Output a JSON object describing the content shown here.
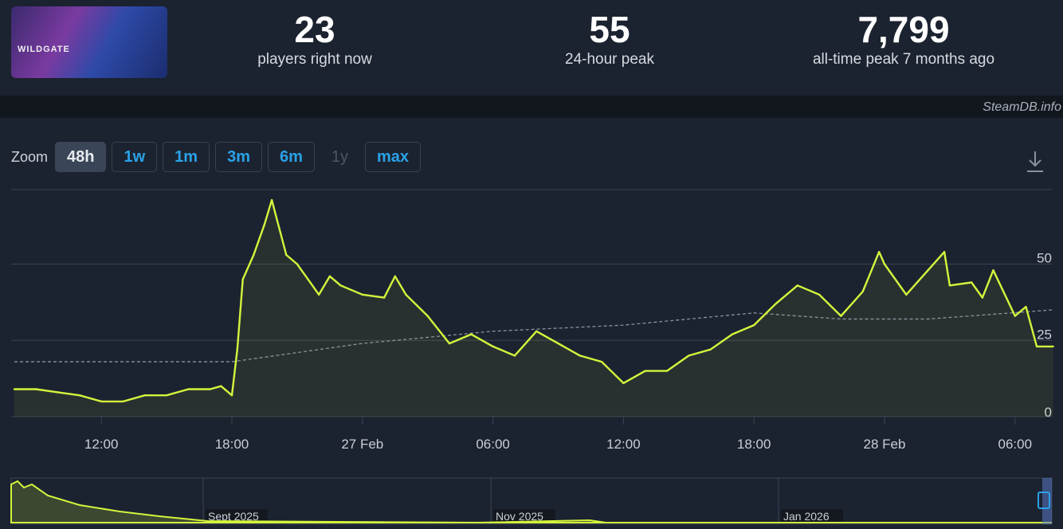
{
  "header": {
    "game_logo_text": "WILDGATE",
    "stats": [
      {
        "value": "23",
        "label": "players right now"
      },
      {
        "value": "55",
        "label": "24-hour peak"
      },
      {
        "value": "7,799",
        "label": "all-time peak 7 months ago"
      }
    ]
  },
  "watermark": "SteamDB.info",
  "zoom": {
    "label": "Zoom",
    "buttons": [
      {
        "label": "48h",
        "state": "active"
      },
      {
        "label": "1w",
        "state": "enabled"
      },
      {
        "label": "1m",
        "state": "enabled"
      },
      {
        "label": "3m",
        "state": "enabled"
      },
      {
        "label": "6m",
        "state": "enabled"
      },
      {
        "label": "1y",
        "state": "disabled"
      },
      {
        "label": "max",
        "state": "enabled"
      }
    ]
  },
  "colors": {
    "line": "#d4f53c",
    "average": "#8a929e",
    "grid": "#3a4352"
  },
  "chart_data": {
    "type": "line",
    "x_start": "2026-02-26T08:00",
    "x_end": "2026-02-28T07:45",
    "ylim": [
      0,
      75
    ],
    "yticks": [
      0,
      25,
      50
    ],
    "xticks": [
      {
        "at": "2026-02-26T12:00",
        "label": "12:00"
      },
      {
        "at": "2026-02-26T18:00",
        "label": "18:00"
      },
      {
        "at": "2026-02-27T00:00",
        "label": "27 Feb"
      },
      {
        "at": "2026-02-27T06:00",
        "label": "06:00"
      },
      {
        "at": "2026-02-27T12:00",
        "label": "12:00"
      },
      {
        "at": "2026-02-27T18:00",
        "label": "18:00"
      },
      {
        "at": "2026-02-28T00:00",
        "label": "28 Feb"
      },
      {
        "at": "2026-02-28T06:00",
        "label": "06:00"
      }
    ],
    "grid": true,
    "series": [
      {
        "style": "solid",
        "points": [
          [
            "2026-02-26T08:00",
            9
          ],
          [
            "2026-02-26T09:00",
            9
          ],
          [
            "2026-02-26T10:00",
            8
          ],
          [
            "2026-02-26T11:00",
            7
          ],
          [
            "2026-02-26T12:00",
            5
          ],
          [
            "2026-02-26T13:00",
            5
          ],
          [
            "2026-02-26T14:00",
            7
          ],
          [
            "2026-02-26T15:00",
            7
          ],
          [
            "2026-02-26T16:00",
            9
          ],
          [
            "2026-02-26T17:00",
            9
          ],
          [
            "2026-02-26T17:30",
            10
          ],
          [
            "2026-02-26T18:00",
            7
          ],
          [
            "2026-02-26T18:15",
            22
          ],
          [
            "2026-02-26T18:30",
            45
          ],
          [
            "2026-02-26T19:00",
            53
          ],
          [
            "2026-02-26T19:30",
            63
          ],
          [
            "2026-02-26T19:50",
            71
          ],
          [
            "2026-02-26T20:30",
            53
          ],
          [
            "2026-02-26T21:00",
            50
          ],
          [
            "2026-02-26T22:00",
            40
          ],
          [
            "2026-02-26T22:30",
            46
          ],
          [
            "2026-02-26T23:00",
            43
          ],
          [
            "2026-02-27T00:00",
            40
          ],
          [
            "2026-02-27T01:00",
            39
          ],
          [
            "2026-02-27T01:30",
            46
          ],
          [
            "2026-02-27T02:00",
            40
          ],
          [
            "2026-02-27T03:00",
            33
          ],
          [
            "2026-02-27T04:00",
            24
          ],
          [
            "2026-02-27T05:00",
            27
          ],
          [
            "2026-02-27T06:00",
            23
          ],
          [
            "2026-02-27T07:00",
            20
          ],
          [
            "2026-02-27T08:00",
            28
          ],
          [
            "2026-02-27T09:00",
            24
          ],
          [
            "2026-02-27T10:00",
            20
          ],
          [
            "2026-02-27T11:00",
            18
          ],
          [
            "2026-02-27T12:00",
            11
          ],
          [
            "2026-02-27T13:00",
            15
          ],
          [
            "2026-02-27T14:00",
            15
          ],
          [
            "2026-02-27T15:00",
            20
          ],
          [
            "2026-02-27T16:00",
            22
          ],
          [
            "2026-02-27T17:00",
            27
          ],
          [
            "2026-02-27T18:00",
            30
          ],
          [
            "2026-02-27T19:00",
            37
          ],
          [
            "2026-02-27T20:00",
            43
          ],
          [
            "2026-02-27T21:00",
            40
          ],
          [
            "2026-02-27T22:00",
            33
          ],
          [
            "2026-02-27T23:00",
            41
          ],
          [
            "2026-02-27T23:45",
            54
          ],
          [
            "2026-02-28T00:00",
            50
          ],
          [
            "2026-02-28T01:00",
            40
          ],
          [
            "2026-02-28T02:00",
            48
          ],
          [
            "2026-02-28T02:45",
            54
          ],
          [
            "2026-02-28T03:00",
            43
          ],
          [
            "2026-02-28T04:00",
            44
          ],
          [
            "2026-02-28T04:30",
            39
          ],
          [
            "2026-02-28T05:00",
            48
          ],
          [
            "2026-02-28T06:00",
            33
          ],
          [
            "2026-02-28T06:30",
            36
          ],
          [
            "2026-02-28T07:00",
            23
          ],
          [
            "2026-02-28T07:45",
            23
          ]
        ]
      },
      {
        "style": "dashed",
        "points": [
          [
            "2026-02-26T08:00",
            18
          ],
          [
            "2026-02-26T18:00",
            18
          ],
          [
            "2026-02-27T00:00",
            24
          ],
          [
            "2026-02-27T06:00",
            28
          ],
          [
            "2026-02-27T12:00",
            30
          ],
          [
            "2026-02-27T18:00",
            34
          ],
          [
            "2026-02-27T22:00",
            32
          ],
          [
            "2026-02-28T02:00",
            32
          ],
          [
            "2026-02-28T07:45",
            35
          ]
        ]
      }
    ]
  },
  "navigator": {
    "labels": [
      "Sept 2025",
      "Nov 2025",
      "Jan 2026"
    ]
  }
}
